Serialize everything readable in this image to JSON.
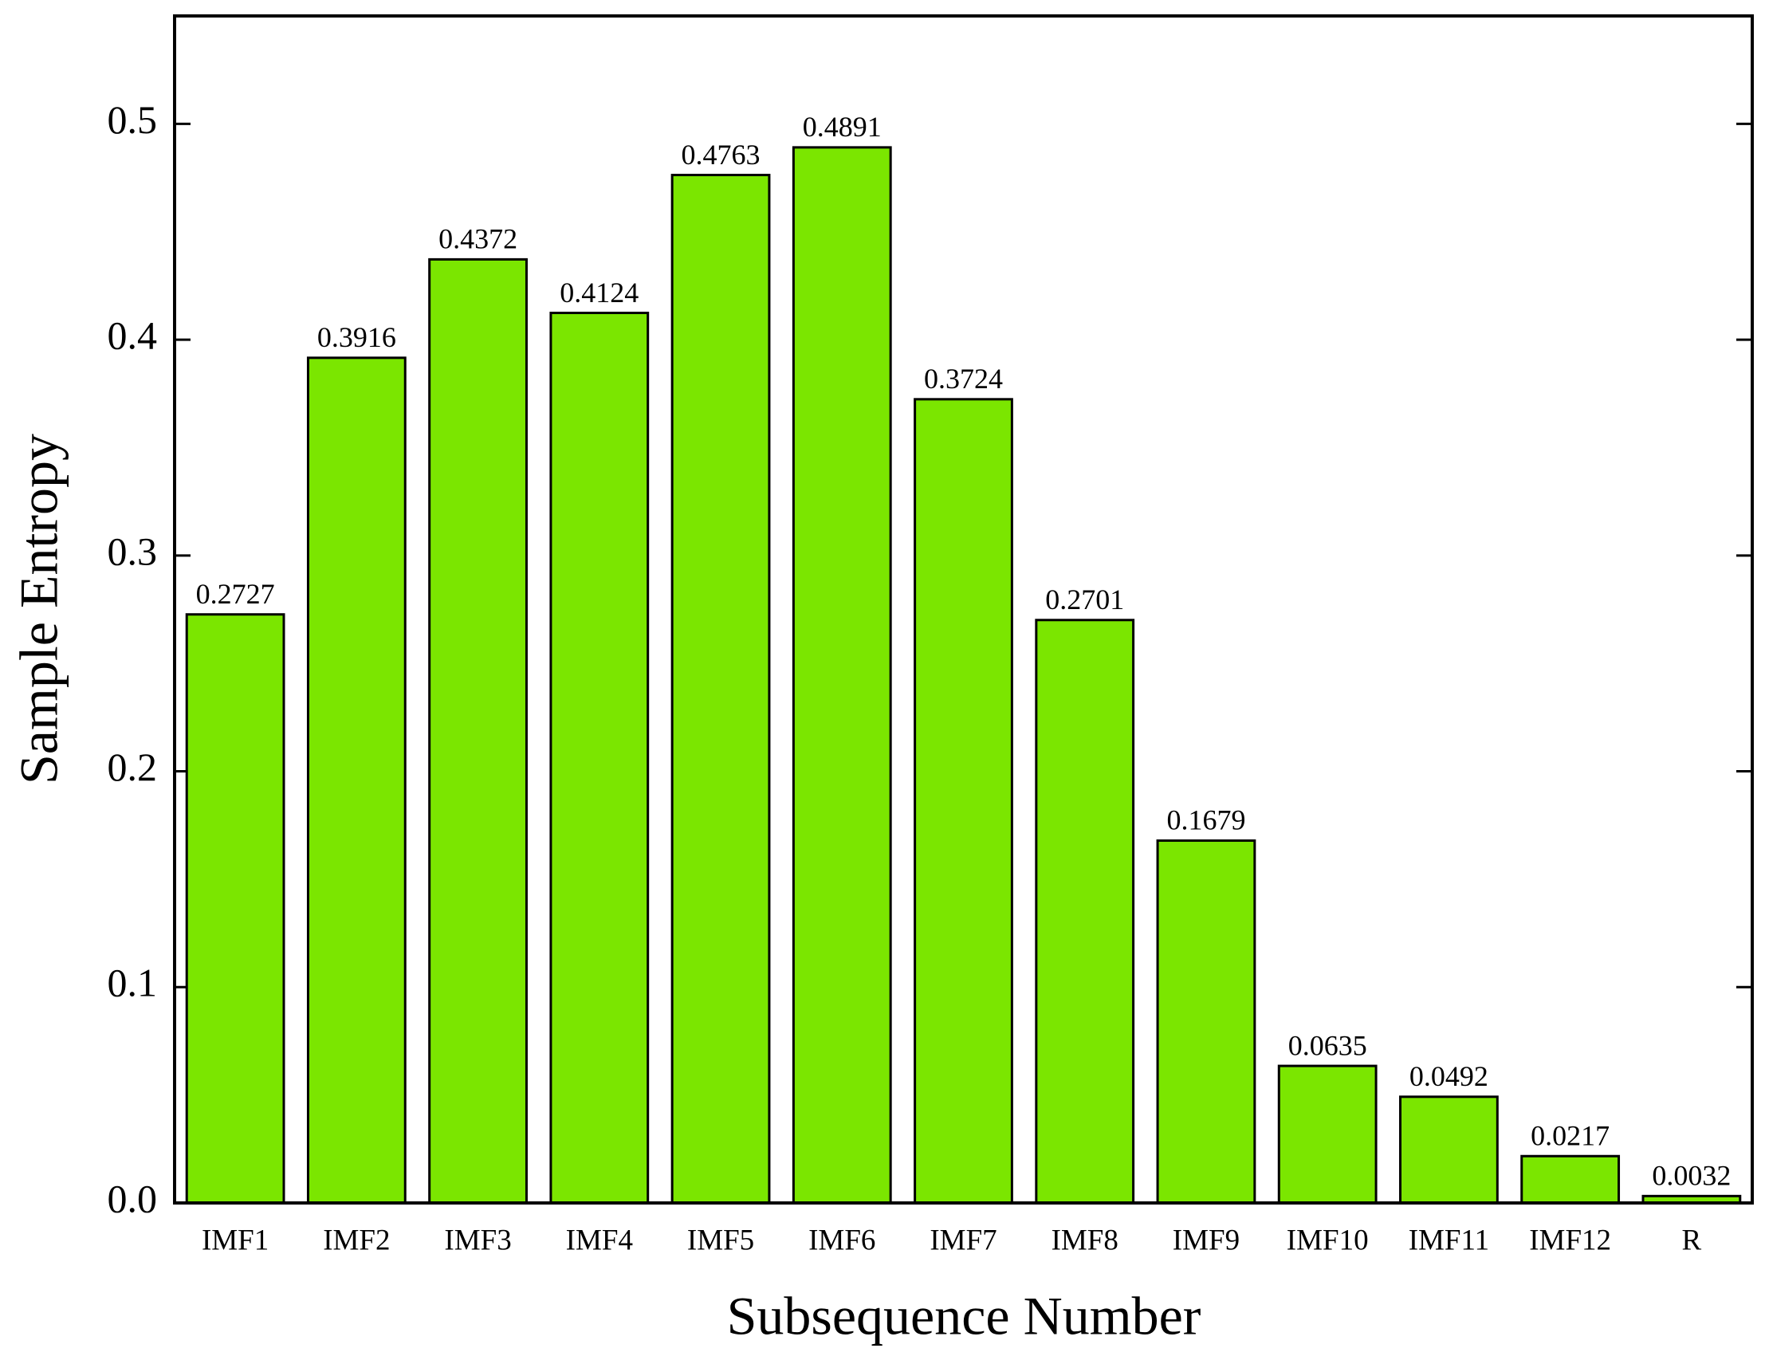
{
  "chart_data": {
    "type": "bar",
    "x_label": "Subsequence Number",
    "y_label": "Sample Entropy",
    "categories": [
      "IMF1",
      "IMF2",
      "IMF3",
      "IMF4",
      "IMF5",
      "IMF6",
      "IMF7",
      "IMF8",
      "IMF9",
      "IMF10",
      "IMF11",
      "IMF12",
      "R"
    ],
    "values": [
      0.2727,
      0.3916,
      0.4372,
      0.4124,
      0.4763,
      0.4891,
      0.3724,
      0.2701,
      0.1679,
      0.0635,
      0.0492,
      0.0217,
      0.0032
    ],
    "color": "#7be600",
    "ylim": [
      0,
      0.55
    ],
    "yticks": [
      {
        "value": 0,
        "label": "0.0"
      },
      0.1,
      0.2,
      0.3,
      0.4,
      0.5
    ],
    "grid": false
  }
}
